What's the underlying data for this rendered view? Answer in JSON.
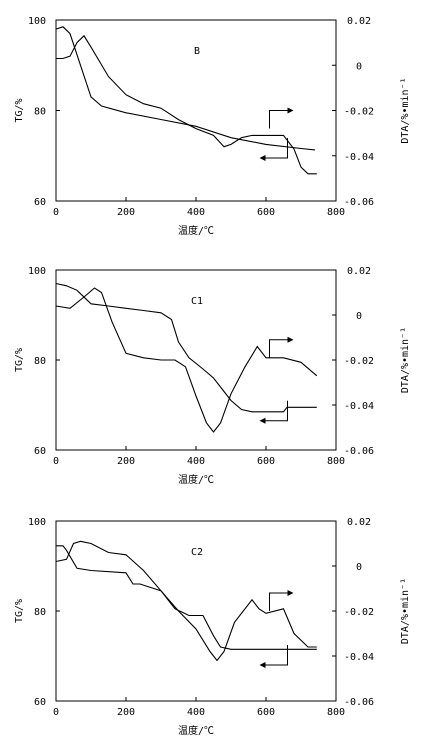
{
  "chart_data": [
    {
      "type": "line",
      "title": "B",
      "xlabel": "温度/℃",
      "ylabel": "TG/%",
      "y2label": "DTA/%•min⁻¹",
      "xlim": [
        0,
        800
      ],
      "ylim": [
        60,
        100
      ],
      "y2lim": [
        -0.06,
        0.02
      ],
      "x_ticks": [
        "0",
        "200",
        "400",
        "600",
        "800"
      ],
      "y_ticks": [
        "60",
        "80",
        "100"
      ],
      "y2_ticks": [
        "-0.06",
        "-0.04",
        "-0.02",
        "0",
        "0.02"
      ],
      "series": [
        {
          "axis": "left",
          "x": [
            0,
            20,
            40,
            70,
            100,
            130,
            200,
            300,
            400,
            500,
            600,
            700,
            740
          ],
          "y": [
            98.0,
            98.5,
            97.0,
            90.0,
            83.0,
            81.0,
            79.5,
            78.0,
            76.5,
            74.0,
            72.5,
            71.6,
            71.3
          ]
        },
        {
          "axis": "right",
          "x": [
            0,
            20,
            40,
            60,
            80,
            100,
            150,
            200,
            250,
            300,
            350,
            400,
            450,
            480,
            500,
            530,
            560,
            600,
            650,
            680,
            700,
            720,
            745
          ],
          "y": [
            0.003,
            0.003,
            0.004,
            0.01,
            0.013,
            0.008,
            -0.005,
            -0.013,
            -0.017,
            -0.019,
            -0.024,
            -0.028,
            -0.031,
            -0.036,
            -0.035,
            -0.032,
            -0.031,
            -0.031,
            -0.031,
            -0.037,
            -0.045,
            -0.048,
            -0.048
          ]
        }
      ],
      "arrows": [
        {
          "x": 650,
          "y_axis": "right",
          "y": -0.02,
          "direction": "right"
        },
        {
          "x": 650,
          "y_axis": "left",
          "y": 69.5,
          "direction": "left"
        }
      ]
    },
    {
      "type": "line",
      "title": "C1",
      "xlabel": "温度/℃",
      "ylabel": "TG/%",
      "y2label": "DTA/%•min⁻¹",
      "xlim": [
        0,
        800
      ],
      "ylim": [
        60,
        100
      ],
      "y2lim": [
        -0.06,
        0.02
      ],
      "x_ticks": [
        "0",
        "200",
        "400",
        "600",
        "800"
      ],
      "y_ticks": [
        "60",
        "80",
        "100"
      ],
      "y2_ticks": [
        "-0.06",
        "-0.04",
        "-0.02",
        "0",
        "0.02"
      ],
      "series": [
        {
          "axis": "left",
          "x": [
            0,
            30,
            60,
            100,
            150,
            200,
            250,
            300,
            330,
            350,
            380,
            420,
            450,
            480,
            500,
            530,
            560,
            600,
            650,
            660,
            700,
            745
          ],
          "y": [
            97.0,
            96.5,
            95.5,
            92.5,
            92.0,
            91.5,
            91.0,
            90.5,
            89.0,
            84.0,
            80.5,
            78.0,
            76.0,
            73.0,
            71.0,
            69.0,
            68.5,
            68.5,
            68.5,
            69.5,
            69.5,
            69.5
          ]
        },
        {
          "axis": "right",
          "x": [
            0,
            40,
            80,
            110,
            130,
            160,
            200,
            250,
            300,
            340,
            370,
            400,
            430,
            450,
            470,
            500,
            540,
            575,
            600,
            650,
            700,
            745
          ],
          "y": [
            0.004,
            0.003,
            0.008,
            0.012,
            0.01,
            -0.003,
            -0.017,
            -0.019,
            -0.02,
            -0.02,
            -0.023,
            -0.036,
            -0.048,
            -0.052,
            -0.048,
            -0.035,
            -0.023,
            -0.014,
            -0.019,
            -0.019,
            -0.021,
            -0.027
          ]
        }
      ],
      "arrows": [
        {
          "x": 650,
          "y_axis": "right",
          "y": -0.011,
          "direction": "right"
        },
        {
          "x": 650,
          "y_axis": "left",
          "y": 66.5,
          "direction": "left"
        }
      ]
    },
    {
      "type": "line",
      "title": "C2",
      "xlabel": "温度/℃",
      "ylabel": "TG/%",
      "y2label": "DTA/%•min⁻¹",
      "xlim": [
        0,
        800
      ],
      "ylim": [
        60,
        100
      ],
      "y2lim": [
        -0.06,
        0.02
      ],
      "x_ticks": [
        "0",
        "200",
        "400",
        "600",
        "800"
      ],
      "y_ticks": [
        "60",
        "80",
        "100"
      ],
      "y2_ticks": [
        "-0.06",
        "-0.04",
        "-0.02",
        "0",
        "0.02"
      ],
      "series": [
        {
          "axis": "left",
          "x": [
            0,
            20,
            30,
            60,
            100,
            200,
            220,
            240,
            300,
            340,
            380,
            420,
            450,
            470,
            500,
            600,
            700,
            745
          ],
          "y": [
            94.5,
            94.5,
            93.5,
            89.5,
            89.0,
            88.5,
            86.0,
            86.0,
            84.5,
            80.5,
            79.0,
            79.0,
            74.5,
            72.0,
            71.5,
            71.5,
            71.5,
            71.5
          ]
        },
        {
          "axis": "right",
          "x": [
            0,
            30,
            50,
            70,
            100,
            150,
            200,
            250,
            300,
            350,
            400,
            440,
            460,
            480,
            510,
            560,
            580,
            600,
            650,
            680,
            720,
            745
          ],
          "y": [
            0.002,
            0.003,
            0.01,
            0.011,
            0.01,
            0.006,
            0.005,
            -0.002,
            -0.011,
            -0.02,
            -0.028,
            -0.038,
            -0.042,
            -0.038,
            -0.025,
            -0.015,
            -0.019,
            -0.021,
            -0.019,
            -0.03,
            -0.036,
            -0.036
          ]
        }
      ],
      "arrows": [
        {
          "x": 650,
          "y_axis": "right",
          "y": -0.012,
          "direction": "right"
        },
        {
          "x": 650,
          "y_axis": "left",
          "y": 68.0,
          "direction": "left"
        }
      ]
    }
  ]
}
